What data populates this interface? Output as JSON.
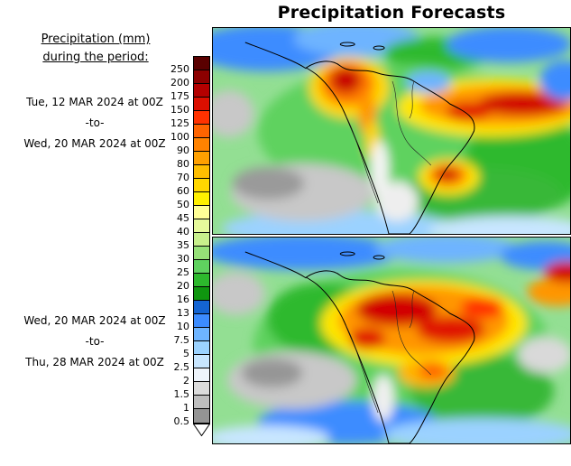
{
  "title": "Precipitation Forecasts",
  "legend": {
    "heading": [
      "Precipitation (mm)",
      "during the period:"
    ],
    "levels": [
      {
        "label": "250",
        "color": "#5a0000"
      },
      {
        "label": "200",
        "color": "#8c0000"
      },
      {
        "label": "175",
        "color": "#b40000"
      },
      {
        "label": "150",
        "color": "#dc0f00"
      },
      {
        "label": "125",
        "color": "#ff3200"
      },
      {
        "label": "100",
        "color": "#ff6400"
      },
      {
        "label": "90",
        "color": "#ff8200"
      },
      {
        "label": "80",
        "color": "#ffa000"
      },
      {
        "label": "70",
        "color": "#ffbe00"
      },
      {
        "label": "60",
        "color": "#ffd700"
      },
      {
        "label": "50",
        "color": "#fff000"
      },
      {
        "label": "45",
        "color": "#ffff96"
      },
      {
        "label": "40",
        "color": "#e6fa9b"
      },
      {
        "label": "35",
        "color": "#c8f08c"
      },
      {
        "label": "30",
        "color": "#96e178"
      },
      {
        "label": "25",
        "color": "#5fd25f"
      },
      {
        "label": "20",
        "color": "#2db92d"
      },
      {
        "label": "16",
        "color": "#0f960f"
      },
      {
        "label": "13",
        "color": "#1464d2"
      },
      {
        "label": "10",
        "color": "#3c8cff"
      },
      {
        "label": "7.5",
        "color": "#6eb4ff"
      },
      {
        "label": "5",
        "color": "#9bd2ff"
      },
      {
        "label": "2.5",
        "color": "#c8e6ff"
      },
      {
        "label": "2",
        "color": "#eef4fb"
      },
      {
        "label": "1.5",
        "color": "#dcdcdc"
      },
      {
        "label": "1",
        "color": "#bebebe"
      },
      {
        "label": "0.5",
        "color": "#949494"
      }
    ]
  },
  "panels": [
    {
      "period_start": "Tue, 12 MAR 2024 at 00Z",
      "separator": "-to-",
      "period_end": "Wed, 20 MAR 2024 at 00Z"
    },
    {
      "period_start": "Wed, 20 MAR 2024 at 00Z",
      "separator": "-to-",
      "period_end": "Thu, 28 MAR 2024 at 00Z"
    }
  ]
}
